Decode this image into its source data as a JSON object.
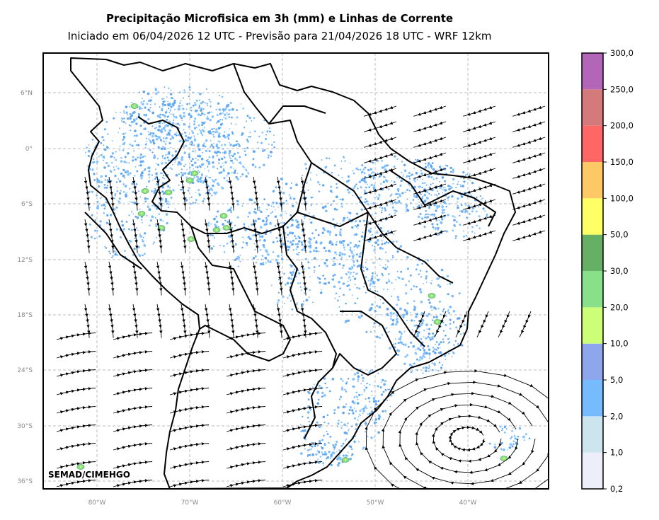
{
  "header": {
    "title": "Precipitação Microfisica em 3h (mm) e Linhas de Corrente",
    "subtitle": "Iniciado em 06/04/2026 12 UTC - Previsão para 21/04/2026 18 UTC - WRF 12km"
  },
  "credit": "SEMAD/CIMEHGO",
  "map": {
    "lat_ticks": [
      "6°N",
      "0°",
      "6°S",
      "12°S",
      "18°S",
      "24°S",
      "30°S",
      "36°S"
    ],
    "lon_ticks": [
      "80°W",
      "70°W",
      "60°W",
      "50°W",
      "40°W"
    ],
    "gridlines": true
  },
  "colorbar": {
    "labels": [
      "0,2",
      "1,0",
      "2,0",
      "5,0",
      "10,0",
      "20,0",
      "30,0",
      "50,0",
      "100,0",
      "150,0",
      "200,0",
      "250,0",
      "300,0"
    ],
    "colors": [
      "#eeeefa",
      "#cce4ee",
      "#77bbff",
      "#8ea6ec",
      "#ccff77",
      "#88e088",
      "#66b066",
      "#ffff66",
      "#ffc866",
      "#ff6666",
      "#d47a7a",
      "#b366b8"
    ]
  }
}
